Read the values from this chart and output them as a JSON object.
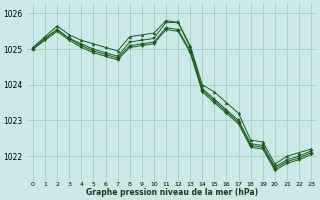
{
  "title": "Graphe pression niveau de la mer (hPa)",
  "background_color": "#cce8e8",
  "grid_color": "#99ccbb",
  "line_color": "#1a5c1a",
  "xlim": [
    -0.5,
    23.5
  ],
  "ylim": [
    1021.3,
    1026.3
  ],
  "yticks": [
    1022,
    1023,
    1024,
    1025,
    1026
  ],
  "xtick_labels": [
    "0",
    "1",
    "2",
    "3",
    "4",
    "5",
    "6",
    "7",
    "8",
    "9",
    "10",
    "11",
    "12",
    "13",
    "14",
    "15",
    "16",
    "17",
    "18",
    "19",
    "20",
    "21",
    "22",
    "23"
  ],
  "series": [
    {
      "x": [
        0,
        1,
        2,
        3,
        4,
        5,
        6,
        7,
        8,
        9,
        10,
        11,
        12,
        13,
        14,
        15,
        16,
        17,
        18,
        19,
        20,
        21,
        22,
        23
      ],
      "y": [
        1025.05,
        1025.35,
        1025.65,
        1025.4,
        1025.25,
        1025.15,
        1025.05,
        1024.95,
        1025.35,
        1025.4,
        1025.45,
        1025.8,
        1025.75,
        1025.1,
        1024.0,
        1023.8,
        1023.5,
        1023.2,
        1022.45,
        1022.4,
        1021.78,
        1022.0,
        1022.1,
        1022.2
      ]
    },
    {
      "x": [
        0,
        1,
        2,
        3,
        4,
        5,
        6,
        7,
        8,
        9,
        10,
        11,
        12,
        13,
        14,
        15,
        16,
        17,
        18,
        19,
        20,
        21,
        22,
        23
      ],
      "y": [
        1025.0,
        1025.3,
        1025.55,
        1025.3,
        1025.15,
        1025.0,
        1024.9,
        1024.8,
        1025.2,
        1025.25,
        1025.3,
        1025.75,
        1025.75,
        1025.05,
        1023.9,
        1023.6,
        1023.3,
        1023.0,
        1022.35,
        1022.3,
        1021.7,
        1021.9,
        1022.0,
        1022.15
      ]
    },
    {
      "x": [
        0,
        1,
        2,
        3,
        4,
        5,
        6,
        7,
        8,
        9,
        10,
        11,
        12,
        13,
        14,
        15,
        16,
        17,
        18,
        19,
        20,
        21,
        22,
        23
      ],
      "y": [
        1025.0,
        1025.3,
        1025.55,
        1025.3,
        1025.1,
        1024.95,
        1024.85,
        1024.75,
        1025.1,
        1025.15,
        1025.2,
        1025.6,
        1025.55,
        1024.95,
        1023.85,
        1023.55,
        1023.25,
        1022.95,
        1022.3,
        1022.25,
        1021.65,
        1021.85,
        1021.95,
        1022.1
      ]
    },
    {
      "x": [
        0,
        1,
        2,
        3,
        4,
        5,
        6,
        7,
        8,
        9,
        10,
        11,
        12,
        13,
        14,
        15,
        16,
        17,
        18,
        19,
        20,
        21,
        22,
        23
      ],
      "y": [
        1025.0,
        1025.25,
        1025.5,
        1025.25,
        1025.05,
        1024.9,
        1024.8,
        1024.7,
        1025.05,
        1025.1,
        1025.15,
        1025.55,
        1025.5,
        1024.9,
        1023.8,
        1023.5,
        1023.2,
        1022.9,
        1022.25,
        1022.2,
        1021.6,
        1021.8,
        1021.9,
        1022.05
      ]
    }
  ]
}
